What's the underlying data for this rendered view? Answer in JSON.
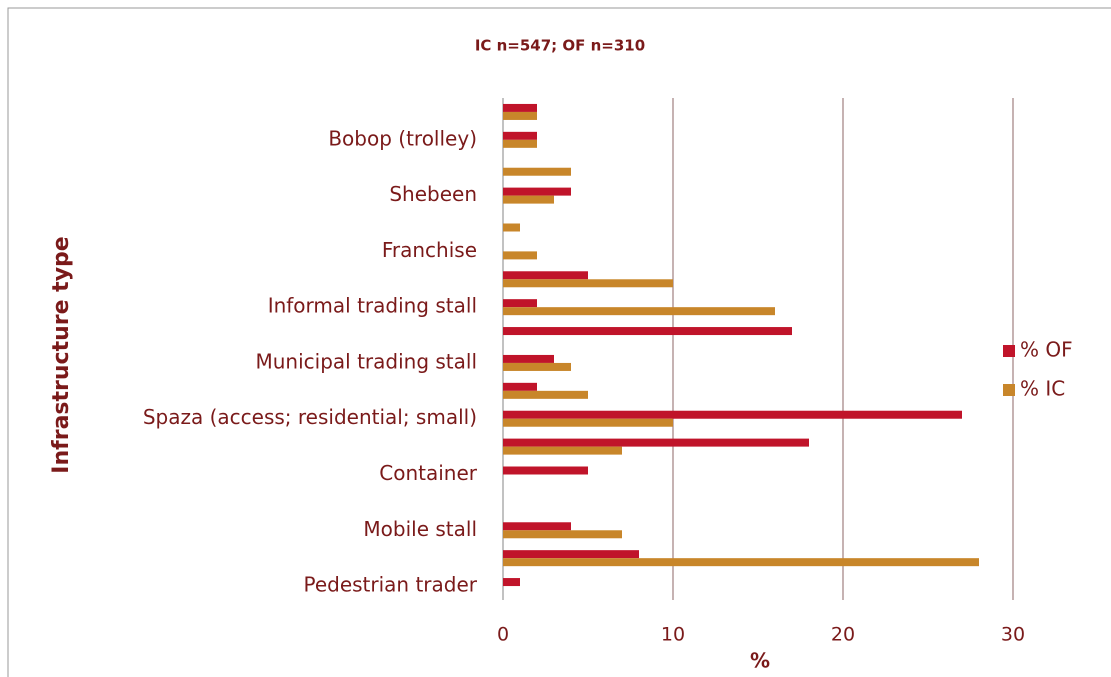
{
  "chart_data": {
    "type": "bar",
    "orientation": "horizontal",
    "title": "IC n=547; OF n=310",
    "x_label": "%",
    "y_label": "Infrastructure type",
    "categories": [
      null,
      "Bobop (trolley)",
      null,
      "Shebeen",
      null,
      "Franchise",
      null,
      "Informal trading stall",
      null,
      "Municipal trading stall",
      null,
      "Spaza (access; residential; small)",
      null,
      "Container",
      null,
      "Mobile stall",
      null,
      "Pedestrian trader"
    ],
    "series": [
      {
        "name": "% OF",
        "color": "#c0142a",
        "values": [
          2,
          2,
          0,
          4,
          0,
          0,
          5,
          2,
          17,
          3,
          2,
          27,
          18,
          5,
          0,
          4,
          8,
          1
        ]
      },
      {
        "name": "% IC",
        "color": "#c8862a",
        "values": [
          2,
          2,
          4,
          3,
          1,
          2,
          10,
          16,
          0,
          4,
          5,
          10,
          7,
          0,
          0,
          7,
          28,
          0
        ]
      }
    ],
    "xlim": [
      0,
      30
    ],
    "xticks": [
      0,
      10,
      20,
      30
    ],
    "grid": true,
    "legend": "right"
  }
}
